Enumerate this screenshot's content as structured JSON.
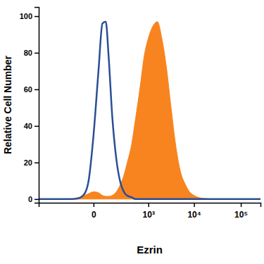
{
  "chart_data": {
    "type": "line",
    "x_label": "Ezrin",
    "y_label": "Relative Cell Number",
    "x": [
      -1000,
      -300,
      -150,
      -80,
      -40,
      -20,
      0,
      20,
      40,
      60,
      80,
      110,
      150,
      200,
      250,
      300,
      400,
      500,
      650,
      800,
      1000,
      1300,
      1600,
      2000,
      2500,
      3200,
      4000,
      5000,
      6500,
      8000,
      10000,
      15000,
      30000,
      100000,
      262144
    ],
    "series": [
      {
        "type": "area",
        "color": "#f7841f",
        "values": [
          0,
          0,
          0,
          0,
          2,
          3,
          4,
          3.5,
          2,
          1.5,
          1.5,
          2,
          4,
          8,
          13,
          19,
          30,
          44,
          62,
          78,
          88,
          95,
          97,
          88,
          73,
          50,
          30,
          16,
          8,
          4,
          2,
          0.5,
          0,
          0,
          0
        ]
      },
      {
        "type": "line",
        "color": "#2b4f94",
        "values": [
          0,
          0,
          0,
          0.5,
          3,
          10,
          35,
          70,
          96,
          97,
          78,
          45,
          22,
          9,
          4,
          2,
          1,
          0,
          0,
          0,
          0,
          0,
          0,
          0,
          0,
          0,
          0,
          0,
          0,
          0,
          0,
          0,
          0,
          0,
          0
        ]
      }
    ],
    "log": "x",
    "xlim": [
      -1000,
      262144
    ],
    "xticks": [
      0,
      {
        "value": 1000,
        "label": "10³"
      },
      {
        "value": 10000,
        "label": "10⁴"
      },
      {
        "value": 100000,
        "label": "10⁵"
      }
    ],
    "ylim": [
      -2,
      105
    ],
    "yticks": [
      0,
      20,
      40,
      60,
      80,
      100
    ]
  }
}
